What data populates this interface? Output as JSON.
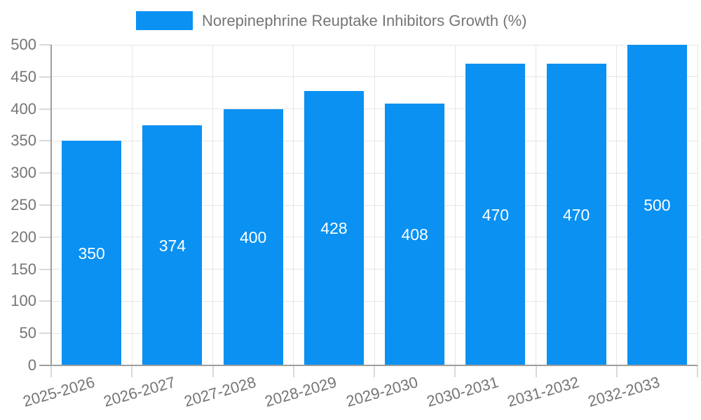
{
  "legend": {
    "label": "Norepinephrine Reuptake Inhibitors Growth (%)"
  },
  "chart_data": {
    "type": "bar",
    "title": "Norepinephrine Reuptake Inhibitors Growth (%)",
    "categories": [
      "2025-2026",
      "2026-2027",
      "2027-2028",
      "2028-2029",
      "2029-2030",
      "2030-2031",
      "2031-2032",
      "2032-2033"
    ],
    "values": [
      350,
      374,
      400,
      428,
      408,
      470,
      470,
      500
    ],
    "data_labels": [
      "350",
      "374",
      "400",
      "428",
      "408",
      "470",
      "470",
      "500"
    ],
    "xlabel": "",
    "ylabel": "",
    "ylim": [
      0,
      500
    ],
    "y_ticks": [
      0,
      50,
      100,
      150,
      200,
      250,
      300,
      350,
      400,
      450,
      500
    ],
    "legend_position": "top",
    "grid": "both",
    "x_label_rotation_deg": -16,
    "colors": {
      "bar": "#0a91f2",
      "data_label": "#ffffff",
      "axis_text": "#757575",
      "grid_line": "#e6e6e6",
      "tick_line": "#d9d9d9",
      "axis_line": "#9e9e9e",
      "background": "#ffffff"
    }
  }
}
